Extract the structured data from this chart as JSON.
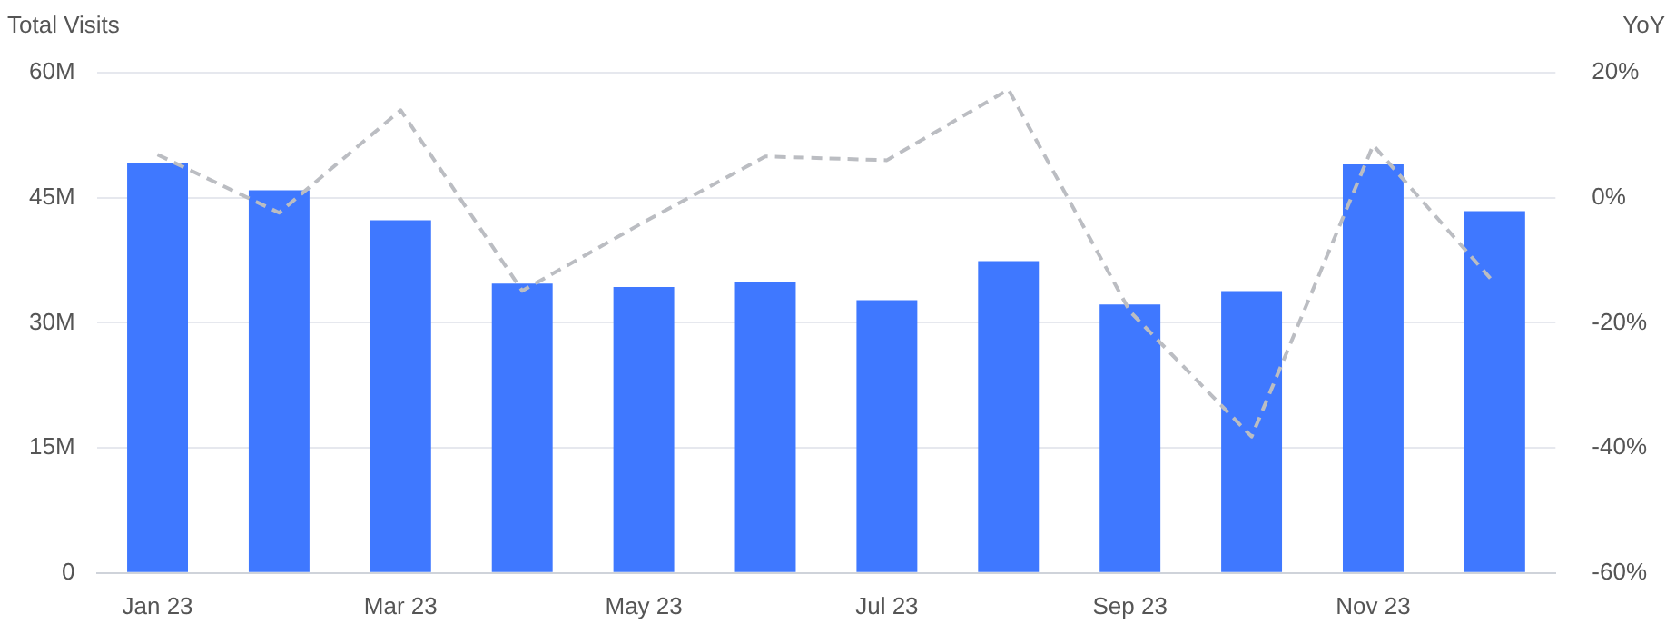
{
  "chart_data": {
    "type": "bar",
    "ylabel": "Total Visits",
    "y2label": "YoY",
    "categories": [
      "Jan 23",
      null,
      "Mar 23",
      null,
      "May 23",
      null,
      "Jul 23",
      null,
      "Sep 23",
      null,
      "Nov 23",
      null
    ],
    "series": [
      {
        "color": "#3f78ff",
        "values": [
          49.2,
          45.9,
          42.3,
          34.7,
          34.3,
          34.9,
          32.7,
          37.4,
          32.2,
          33.8,
          49.0,
          43.4
        ]
      },
      {
        "type": "line",
        "axis": "y2",
        "color": "#bbbdc2",
        "line_style": "dashed",
        "marker": "none",
        "values": [
          6.9,
          -2.4,
          14,
          -14.9,
          -3.9,
          6.6,
          6,
          17.3,
          -18.2,
          -38.2,
          8.4,
          -13.7
        ]
      }
    ],
    "ylim": [
      0,
      60
    ],
    "yticks": [
      {
        "value": 0,
        "label": "0"
      },
      {
        "value": 15,
        "label": "15M"
      },
      {
        "value": 30,
        "label": "30M"
      },
      {
        "value": 45,
        "label": "45M"
      },
      {
        "value": 60,
        "label": "60M"
      }
    ],
    "y2lim": [
      -60,
      20
    ],
    "y2ticks": [
      {
        "value": -60,
        "label": "-60%"
      },
      {
        "value": -40,
        "label": "-40%"
      },
      {
        "value": -20,
        "label": "-20%"
      },
      {
        "value": 0,
        "label": "0%"
      },
      {
        "value": 20,
        "label": "20%"
      }
    ],
    "grid": "y",
    "legend": false
  }
}
